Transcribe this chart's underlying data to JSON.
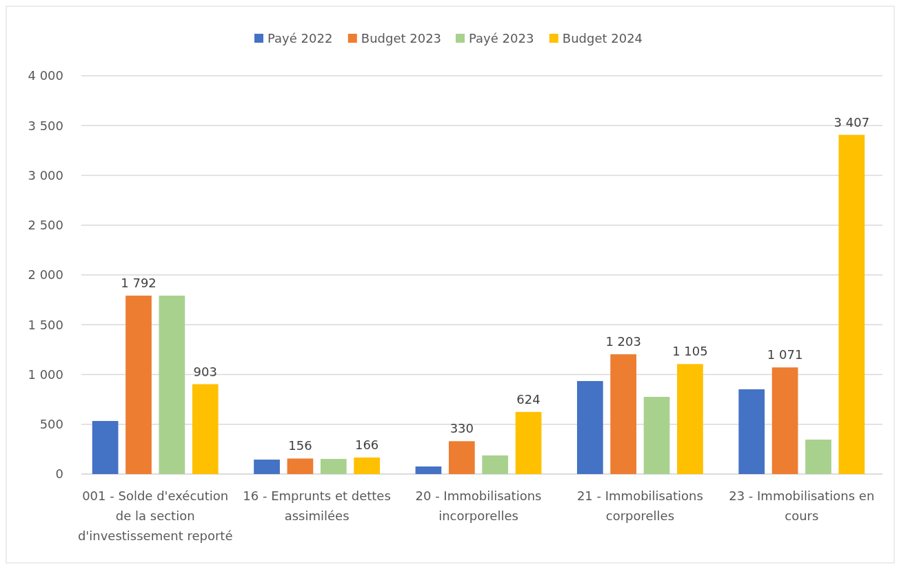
{
  "chart_data": {
    "type": "bar",
    "categories": [
      "001 - Solde d'exécution de la section d'investissement reporté",
      "16 - Emprunts et dettes assimilées",
      "20 - Immobilisations incorporelles",
      "21 - Immobilisations corporelles",
      "23 - Immobilisations en cours"
    ],
    "series": [
      {
        "name": "Payé 2022",
        "color": "#4472c4",
        "values": [
          533,
          145,
          76,
          934,
          851
        ]
      },
      {
        "name": "Budget 2023",
        "color": "#ed7d31",
        "values": [
          1792,
          156,
          330,
          1203,
          1071
        ],
        "value_labels": [
          "1 792",
          "156",
          "330",
          "1 203",
          "1 071"
        ]
      },
      {
        "name": "Payé 2023",
        "color": "#a9d18e",
        "values": [
          1792,
          152,
          187,
          775,
          346
        ]
      },
      {
        "name": "Budget 2024",
        "color": "#ffc000",
        "values": [
          903,
          166,
          624,
          1105,
          3407
        ],
        "value_labels": [
          "903",
          "166",
          "624",
          "1 105",
          "3 407"
        ]
      }
    ],
    "ylim": [
      0,
      4000
    ],
    "yticks": [
      {
        "value": 0,
        "label": "0"
      },
      {
        "value": 500,
        "label": "500"
      },
      {
        "value": 1000,
        "label": "1 000"
      },
      {
        "value": 1500,
        "label": "1 500"
      },
      {
        "value": 2000,
        "label": "2 000"
      },
      {
        "value": 2500,
        "label": "2 500"
      },
      {
        "value": 3000,
        "label": "3 000"
      },
      {
        "value": 3500,
        "label": "3 500"
      },
      {
        "value": 4000,
        "label": "4 000"
      }
    ],
    "grid": "y",
    "legend": "top"
  }
}
